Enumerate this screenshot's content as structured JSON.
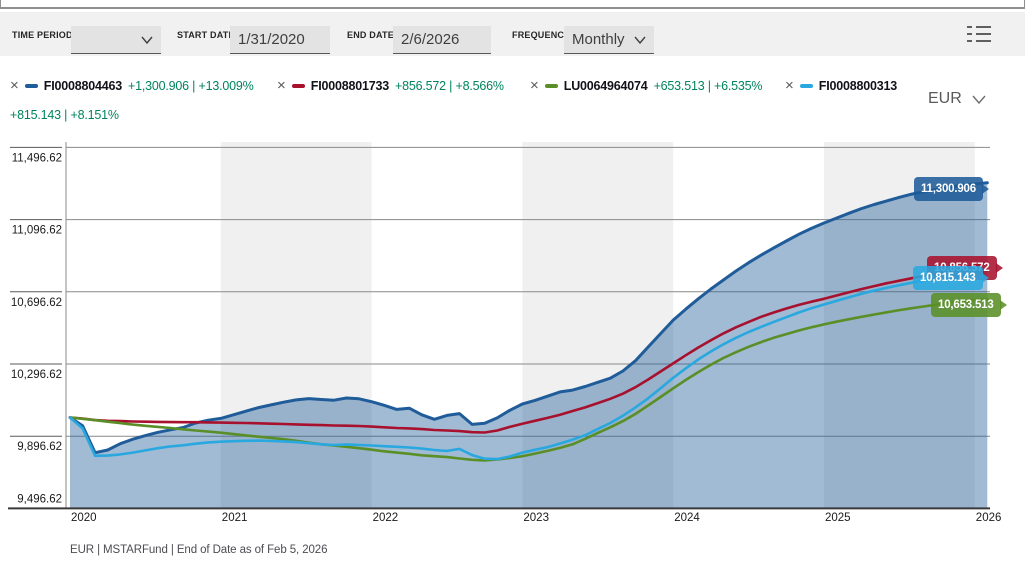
{
  "toolbar": {
    "time_period_label": "TIME PERIOD",
    "time_period_value": "",
    "start_date_label": "START DATE",
    "start_date_value": "1/31/2020",
    "end_date_label": "END DATE",
    "end_date_value": "2/6/2026",
    "frequency_label": "FREQUENCY",
    "frequency_value": "Monthly"
  },
  "legend": {
    "items": [
      {
        "id": "FI0008804463",
        "change": "+1,300.906 | +13.009%",
        "color": "#1f5c99"
      },
      {
        "id": "FI0008801733",
        "change": "+856.572 | +8.566%",
        "color": "#a8112e"
      },
      {
        "id": "LU0064964074",
        "change": "+653.513 | +6.535%",
        "color": "#5a8f27"
      },
      {
        "id": "FI0008800313",
        "change": "+815.143 | +8.151%",
        "color": "#29a8e0"
      }
    ],
    "currency": "EUR"
  },
  "footer": "EUR | MSTARFund | End of Date as of Feb 5, 2026",
  "colors": {
    "area_fill": "rgba(31,92,153,0.42)",
    "band": "#f0f0f0",
    "gridline": "#8a8a8a",
    "axis": "#3a3a3a",
    "tick_text": "#1a1a1a"
  },
  "chart_data": {
    "type": "line",
    "title": "",
    "frequency": "Monthly",
    "x_start": "Jan 2020",
    "x_end": "Feb 2026",
    "x_ticks": [
      "2020",
      "2021",
      "2022",
      "2023",
      "2024",
      "2025",
      "2026"
    ],
    "y_ticks": [
      11496.62,
      11096.62,
      10696.62,
      10296.62,
      9896.62,
      9496.62
    ],
    "y_tick_labels": [
      "11,496.62",
      "11,096.62",
      "10,696.62",
      "10,296.62",
      "9,896.62",
      "9,496.62"
    ],
    "ylim": [
      9496.62,
      11496.62
    ],
    "shaded_year_bands": [
      "2021",
      "2023",
      "2025"
    ],
    "series": [
      {
        "name": "FI0008804463",
        "color": "#1f5c99",
        "area": true,
        "end_label": "11,300.906",
        "values": [
          10000,
          9955,
          9805,
          9820,
          9855,
          9880,
          9900,
          9918,
          9932,
          9945,
          9970,
          9985,
          9995,
          10015,
          10035,
          10055,
          10070,
          10085,
          10098,
          10105,
          10100,
          10096,
          10108,
          10104,
          10088,
          10068,
          10045,
          10052,
          10015,
          9990,
          10012,
          10022,
          9962,
          9968,
          9998,
          10040,
          10075,
          10095,
          10118,
          10142,
          10152,
          10172,
          10195,
          10218,
          10258,
          10315,
          10390,
          10465,
          10540,
          10600,
          10658,
          10712,
          10762,
          10812,
          10858,
          10900,
          10940,
          10978,
          11015,
          11048,
          11078,
          11105,
          11132,
          11158,
          11180,
          11200,
          11220,
          11238,
          11252,
          11265,
          11276,
          11286,
          11294,
          11300.906
        ]
      },
      {
        "name": "FI0008801733",
        "color": "#a8112e",
        "area": false,
        "end_label": "10,856.572",
        "values": [
          10000,
          9994,
          9986,
          9982,
          9980,
          9978,
          9977,
          9976,
          9975,
          9974,
          9974,
          9973,
          9972,
          9971,
          9970,
          9968,
          9966,
          9964,
          9962,
          9960,
          9958,
          9956,
          9955,
          9953,
          9950,
          9946,
          9942,
          9940,
          9936,
          9931,
          9928,
          9925,
          9919,
          9917,
          9928,
          9948,
          9966,
          9982,
          9998,
          10016,
          10036,
          10056,
          10080,
          10104,
          10132,
          10168,
          10210,
          10255,
          10300,
          10345,
          10388,
          10428,
          10466,
          10500,
          10530,
          10558,
          10582,
          10604,
          10624,
          10642,
          10658,
          10676,
          10694,
          10712,
          10728,
          10744,
          10758,
          10772,
          10786,
          10800,
          10814,
          10828,
          10844,
          10856.572
        ]
      },
      {
        "name": "LU0064964074",
        "color": "#5a8f27",
        "area": false,
        "end_label": "10,653.513",
        "values": [
          10000,
          9993,
          9985,
          9977,
          9969,
          9961,
          9954,
          9948,
          9942,
          9935,
          9928,
          9922,
          9916,
          9908,
          9901,
          9894,
          9887,
          9880,
          9871,
          9861,
          9852,
          9845,
          9838,
          9830,
          9822,
          9813,
          9806,
          9799,
          9791,
          9786,
          9781,
          9773,
          9766,
          9762,
          9768,
          9776,
          9786,
          9800,
          9815,
          9832,
          9852,
          9882,
          9915,
          9946,
          9980,
          10020,
          10066,
          10114,
          10162,
          10208,
          10252,
          10293,
          10330,
          10362,
          10392,
          10418,
          10442,
          10462,
          10482,
          10500,
          10516,
          10531,
          10545,
          10558,
          10571,
          10583,
          10595,
          10606,
          10616,
          10626,
          10636,
          10644,
          10650,
          10653.513
        ]
      },
      {
        "name": "FI0008800313",
        "color": "#29a8e0",
        "area": false,
        "end_label": "10,815.143",
        "values": [
          10000,
          9940,
          9788,
          9789,
          9796,
          9806,
          9818,
          9830,
          9840,
          9846,
          9855,
          9862,
          9866,
          9869,
          9871,
          9872,
          9870,
          9868,
          9864,
          9858,
          9852,
          9848,
          9851,
          9848,
          9845,
          9841,
          9838,
          9834,
          9828,
          9820,
          9815,
          9826,
          9792,
          9772,
          9770,
          9784,
          9806,
          9821,
          9836,
          9856,
          9878,
          9902,
          9936,
          9970,
          10010,
          10056,
          10106,
          10162,
          10220,
          10272,
          10322,
          10366,
          10406,
          10442,
          10474,
          10502,
          10530,
          10556,
          10582,
          10606,
          10626,
          10646,
          10666,
          10686,
          10703,
          10719,
          10733,
          10747,
          10760,
          10772,
          10784,
          10796,
          10807,
          10815.143
        ]
      }
    ]
  }
}
